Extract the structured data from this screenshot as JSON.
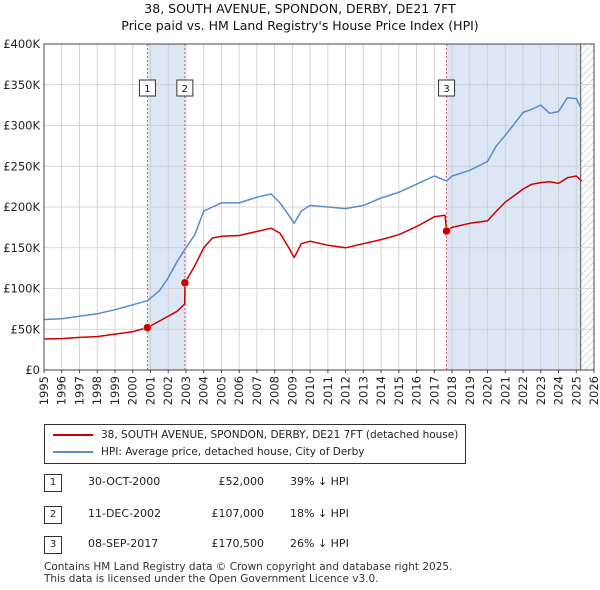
{
  "title": {
    "line1": "38, SOUTH AVENUE, SPONDON, DERBY, DE21 7FT",
    "line2": "Price paid vs. HM Land Registry's House Price Index (HPI)"
  },
  "colors": {
    "property_line": "#cc0000",
    "hpi_line": "#5a8cc8",
    "shade": "#dde6f5",
    "marker_line": "#e06060",
    "grid": "#cccccc"
  },
  "chart_data": {
    "type": "line",
    "title": "Price paid vs. HM Land Registry's House Price Index (HPI)",
    "xlabel": "",
    "ylabel": "",
    "xlim": [
      1995,
      2026
    ],
    "ylim": [
      0,
      400000
    ],
    "x_ticks": [
      "1995",
      "1996",
      "1997",
      "1998",
      "1999",
      "2000",
      "2001",
      "2002",
      "2003",
      "2004",
      "2005",
      "2006",
      "2007",
      "2008",
      "2009",
      "2010",
      "2011",
      "2012",
      "2013",
      "2014",
      "2015",
      "2016",
      "2017",
      "2018",
      "2019",
      "2020",
      "2021",
      "2022",
      "2023",
      "2024",
      "2025",
      "2026"
    ],
    "y_ticks": [
      {
        "value": 0,
        "label": "£0"
      },
      {
        "value": 50000,
        "label": "£50K"
      },
      {
        "value": 100000,
        "label": "£100K"
      },
      {
        "value": 150000,
        "label": "£150K"
      },
      {
        "value": 200000,
        "label": "£200K"
      },
      {
        "value": 250000,
        "label": "£250K"
      },
      {
        "value": 300000,
        "label": "£300K"
      },
      {
        "value": 350000,
        "label": "£350K"
      },
      {
        "value": 400000,
        "label": "£400K"
      }
    ],
    "grid": true,
    "shaded_ranges": [
      [
        2000.83,
        2002.94
      ],
      [
        2017.69,
        2025.25
      ]
    ],
    "future_hatch_from": 2025.25,
    "series": [
      {
        "name": "38, SOUTH AVENUE, SPONDON, DERBY, DE21 7FT (detached house)",
        "color": "#cc0000",
        "x": [
          1995,
          1996,
          1997,
          1998,
          1999,
          2000,
          2000.83,
          2001.5,
          2002.5,
          2002.93,
          2002.95,
          2003.5,
          2004,
          2004.5,
          2005,
          2006,
          2007,
          2007.8,
          2008.3,
          2008.8,
          2009.1,
          2009.5,
          2010,
          2011,
          2012,
          2013,
          2014,
          2015,
          2016,
          2017,
          2017.6,
          2017.69,
          2018,
          2019,
          2020,
          2020.5,
          2021,
          2021.5,
          2022,
          2022.5,
          2023,
          2023.5,
          2024,
          2024.5,
          2025,
          2025.3
        ],
        "values": [
          38000,
          38500,
          40000,
          41000,
          44000,
          47000,
          52000,
          60000,
          72000,
          81000,
          107000,
          128000,
          150000,
          162000,
          164000,
          165000,
          170000,
          174000,
          168000,
          150000,
          138000,
          155000,
          158000,
          153000,
          150000,
          155000,
          160000,
          166000,
          176000,
          188000,
          190000,
          170500,
          175000,
          180000,
          183000,
          195000,
          206000,
          214000,
          222000,
          228000,
          230000,
          231000,
          229000,
          236000,
          238000,
          232000
        ]
      },
      {
        "name": "HPI: Average price, detached house, City of Derby",
        "color": "#5a8cc8",
        "x": [
          1995,
          1996,
          1997,
          1998,
          1999,
          2000,
          2000.83,
          2001.5,
          2002,
          2002.5,
          2003,
          2003.5,
          2004,
          2004.5,
          2005,
          2006,
          2007,
          2007.8,
          2008.3,
          2008.8,
          2009.1,
          2009.5,
          2010,
          2011,
          2012,
          2013,
          2014,
          2015,
          2016,
          2017,
          2017.69,
          2018,
          2019,
          2020,
          2020.5,
          2021,
          2021.5,
          2022,
          2022.5,
          2023,
          2023.5,
          2024,
          2024.5,
          2025,
          2025.3
        ],
        "values": [
          62000,
          63000,
          66000,
          69000,
          74000,
          80000,
          85000,
          97000,
          113000,
          133000,
          150000,
          166000,
          195000,
          200000,
          205000,
          205000,
          212000,
          216000,
          205000,
          190000,
          180000,
          195000,
          202000,
          200000,
          198000,
          202000,
          211000,
          218000,
          228000,
          238000,
          232000,
          238000,
          245000,
          256000,
          275000,
          288000,
          302000,
          316000,
          320000,
          325000,
          315000,
          317000,
          334000,
          333000,
          320000
        ]
      }
    ],
    "sale_markers": [
      {
        "label": "1",
        "x": 2000.83,
        "value": 52000
      },
      {
        "label": "2",
        "x": 2002.94,
        "value": 107000
      },
      {
        "label": "3",
        "x": 2017.69,
        "value": 170500
      }
    ]
  },
  "legend": {
    "property_label": "38, SOUTH AVENUE, SPONDON, DERBY, DE21 7FT (detached house)",
    "hpi_label": "HPI: Average price, detached house, City of Derby"
  },
  "sales": [
    {
      "num": "1",
      "date": "30-OCT-2000",
      "price": "£52,000",
      "hpi": "39% ↓ HPI"
    },
    {
      "num": "2",
      "date": "11-DEC-2002",
      "price": "£107,000",
      "hpi": "18% ↓ HPI"
    },
    {
      "num": "3",
      "date": "08-SEP-2017",
      "price": "£170,500",
      "hpi": "26% ↓ HPI"
    }
  ],
  "footer": {
    "line1": "Contains HM Land Registry data © Crown copyright and database right 2025.",
    "line2": "This data is licensed under the Open Government Licence v3.0."
  }
}
